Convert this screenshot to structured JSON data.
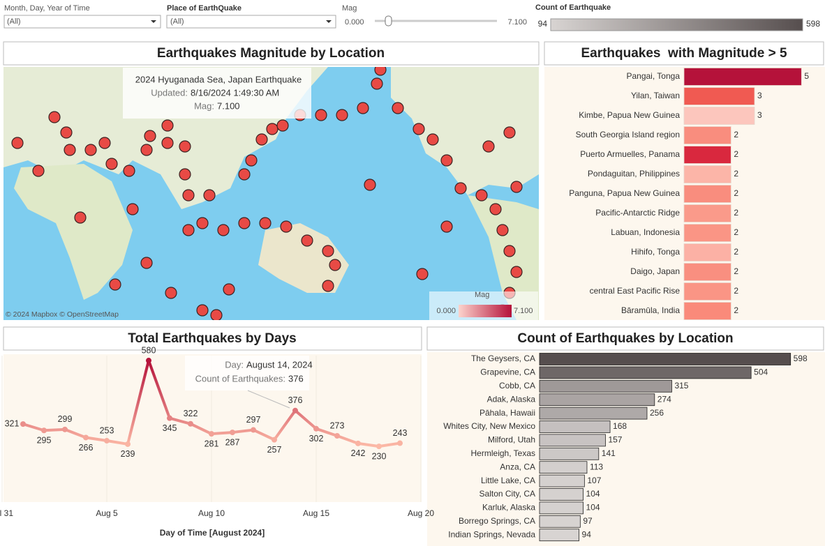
{
  "filters": {
    "date": {
      "label": "Month, Day, Year of Time",
      "value": "(All)"
    },
    "place": {
      "label": "Place of EarthQuake",
      "value": "(All)"
    },
    "mag": {
      "label": "Mag",
      "min": "0.000",
      "max": "7.100"
    }
  },
  "count_legend": {
    "title": "Count of Earthquake",
    "min": 94,
    "max": 598,
    "colors": [
      "#d8d4d2",
      "#564e4e"
    ]
  },
  "chart_data": [
    {
      "type": "map",
      "title": "Earthquakes Magnitude by Location",
      "tooltip": {
        "name": "2024 Hyuganada Sea, Japan Earthquake",
        "updated_label": "Updated:",
        "updated": "8/16/2024 1:49:30 AM",
        "mag_label": "Mag:",
        "mag": "7.100"
      },
      "attribution": "© 2024 Mapbox © OpenStreetMap",
      "legend": {
        "title": "Mag",
        "min": "0.000",
        "max": "7.100",
        "colors": [
          "#fcd3cc",
          "#b5123a"
        ]
      }
    },
    {
      "type": "hbar",
      "title": "Earthquakes  with Magnitude > 5",
      "categories": [
        "Pangai, Tonga",
        "Yilan, Taiwan",
        "Kimbe, Papua New Guinea",
        "South Georgia Island region",
        "Puerto Armuelles, Panama",
        "Pondaguitan, Philippines",
        "Panguna, Papua New Guinea",
        "Pacific-Antarctic Ridge",
        "Labuan, Indonesia",
        "Hihifo, Tonga",
        "Daigo, Japan",
        "central East Pacific Rise",
        "Bāramūla, India"
      ],
      "values": [
        5,
        3,
        3,
        2,
        2,
        2,
        2,
        2,
        2,
        2,
        2,
        2,
        2
      ],
      "colors": [
        "#b5123a",
        "#f05a52",
        "#fcc6bd",
        "#f98d7e",
        "#d9283e",
        "#fcb5a8",
        "#f98d7e",
        "#fa9a8a",
        "#fa9585",
        "#fcb1a5",
        "#f98f80",
        "#fa9585",
        "#fa8a7a"
      ],
      "xlim": [
        0,
        6
      ]
    },
    {
      "type": "line",
      "title": "Total Earthquakes by Days",
      "x_label": "Day of Time [August 2024]",
      "x": [
        1,
        2,
        3,
        4,
        5,
        6,
        7,
        8,
        9,
        10,
        11,
        12,
        13,
        14,
        15,
        16,
        17,
        18,
        19
      ],
      "values": [
        321,
        295,
        299,
        266,
        253,
        239,
        580,
        345,
        322,
        281,
        287,
        297,
        257,
        376,
        302,
        273,
        242,
        230,
        243
      ],
      "xlim": [
        0,
        20
      ],
      "ylim": [
        0,
        600
      ],
      "xticks": [
        {
          "value": 0,
          "label": "Jul 31"
        },
        {
          "value": 5,
          "label": "Aug 5"
        },
        {
          "value": 10,
          "label": "Aug 10"
        },
        {
          "value": 15,
          "label": "Aug 15"
        },
        {
          "value": 20,
          "label": "Aug 20"
        }
      ],
      "color_range": [
        "#fcb9a6",
        "#b5123a"
      ],
      "tooltip": {
        "day_label": "Day:",
        "day": "August 14, 2024",
        "count_label": "Count of Earthquakes:",
        "count": "376"
      }
    },
    {
      "type": "hbar",
      "title": "Count of Earthquakes by Location",
      "categories": [
        "The Geysers, CA",
        "Grapevine, CA",
        "Cobb, CA",
        "Adak, Alaska",
        "Pāhala, Hawaii",
        "Whites City, New Mexico",
        "Milford, Utah",
        "Hermleigh, Texas",
        "Anza, CA",
        "Little Lake, CA",
        "Salton City, CA",
        "Karluk, Alaska",
        "Borrego Springs, CA",
        "Indian Springs, Nevada"
      ],
      "values": [
        598,
        504,
        315,
        274,
        256,
        168,
        157,
        141,
        113,
        107,
        104,
        104,
        97,
        94
      ],
      "xlim": [
        0,
        675
      ]
    }
  ]
}
